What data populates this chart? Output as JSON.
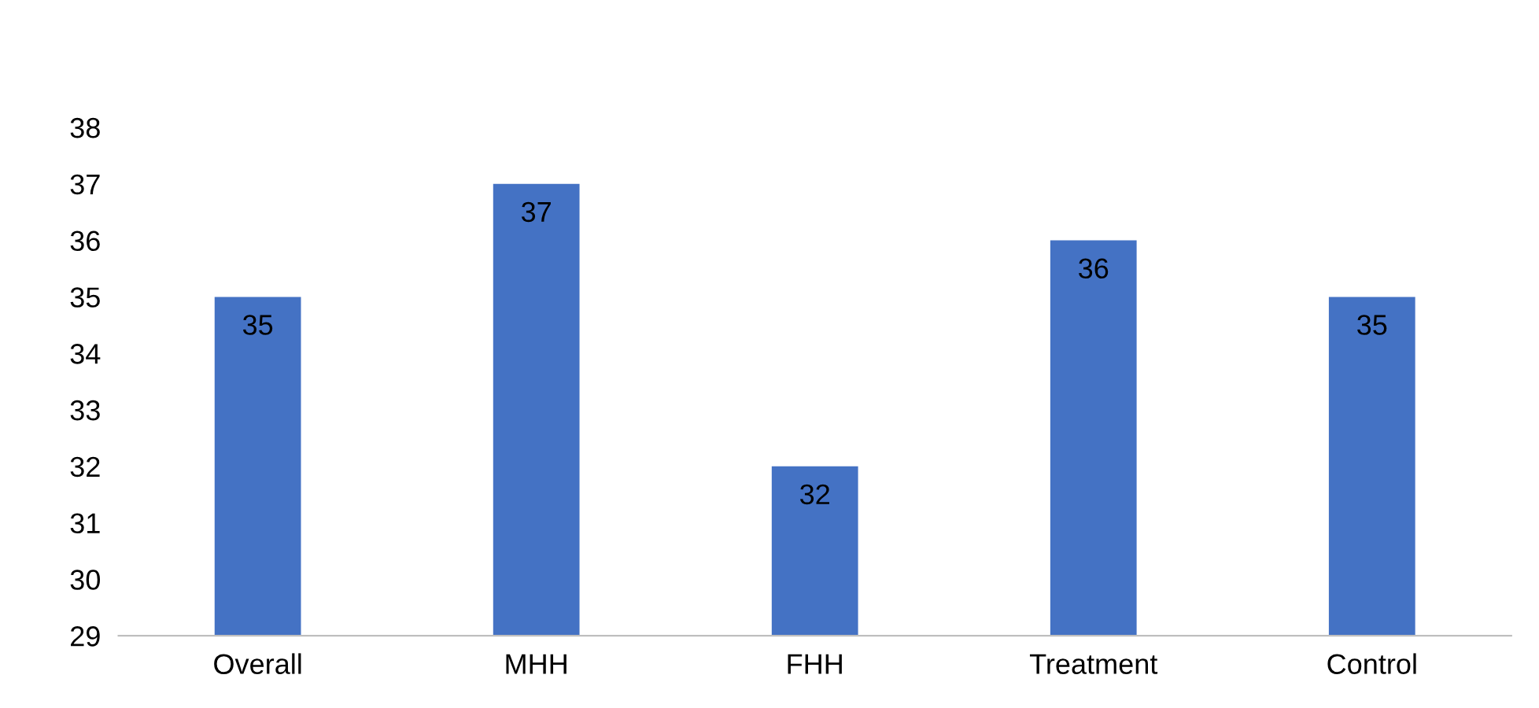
{
  "chart_data": {
    "type": "bar",
    "categories": [
      "Overall",
      "MHH",
      "FHH",
      "Treatment",
      "Control"
    ],
    "values": [
      35,
      37,
      32,
      36,
      35
    ],
    "color": "#4472c4",
    "ylim": [
      29,
      38
    ],
    "yticks": [
      29,
      30,
      31,
      32,
      33,
      34,
      35,
      36,
      37,
      38
    ],
    "grid": false,
    "data_labels": true
  }
}
